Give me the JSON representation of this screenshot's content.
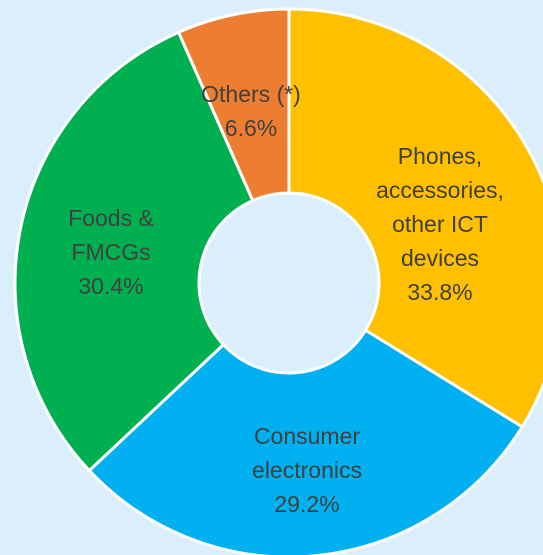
{
  "chart_data": {
    "type": "pie",
    "donut": true,
    "slices": [
      {
        "name": "Phones, accessories, other ICT devices",
        "label_lines": [
          "Phones,",
          "accessories,",
          "other ICT",
          "devices",
          "33.8%"
        ],
        "value": 33.8,
        "color": "#ffc000"
      },
      {
        "name": "Consumer electronics",
        "label_lines": [
          "Consumer",
          "electronics",
          "29.2%"
        ],
        "value": 29.2,
        "color": "#00b0f0"
      },
      {
        "name": "Foods & FMCGs",
        "label_lines": [
          "Foods &",
          "FMCGs",
          "30.4%"
        ],
        "value": 30.4,
        "color": "#00b050"
      },
      {
        "name": "Others (*)",
        "label_lines": [
          "Others (*)",
          "6.6%"
        ],
        "value": 6.6,
        "color": "#ed7d31"
      }
    ],
    "title": "",
    "legend": "none"
  },
  "colors": {
    "background": "#dbeefc",
    "slice_border": "#ffffff",
    "label_text": "#404040"
  }
}
